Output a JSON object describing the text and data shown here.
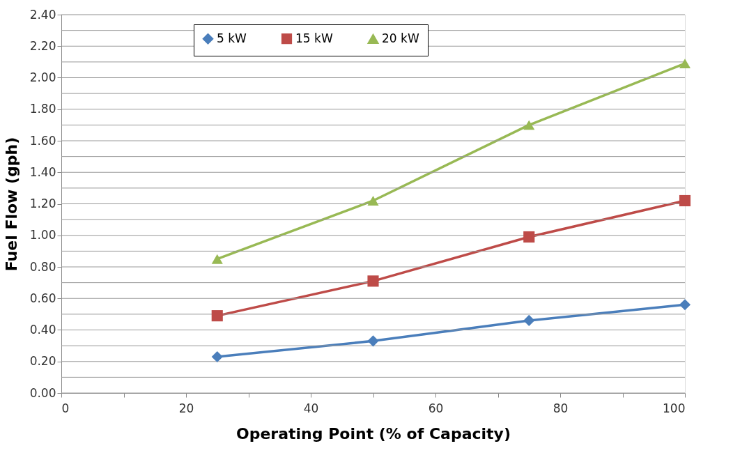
{
  "chart_data": {
    "type": "line",
    "xlabel": "Operating Point (% of Capacity)",
    "ylabel": "Fuel Flow (gph)",
    "xlim": [
      0,
      100
    ],
    "xticks": [
      0,
      {
        "value": 10,
        "label": null
      },
      20,
      {
        "value": 30,
        "label": null
      },
      40,
      {
        "value": 50,
        "label": null
      },
      60,
      {
        "value": 70,
        "label": null
      },
      80,
      {
        "value": 90,
        "label": null
      },
      100
    ],
    "ylim": [
      0,
      2.4
    ],
    "yticks": [
      {
        "value": 0,
        "label": "0.00"
      },
      {
        "value": 0.1,
        "label": null
      },
      {
        "value": 0.2,
        "label": "0.20"
      },
      {
        "value": 0.3,
        "label": null
      },
      {
        "value": 0.4,
        "label": "0.40"
      },
      {
        "value": 0.5,
        "label": null
      },
      {
        "value": 0.6,
        "label": "0.60"
      },
      {
        "value": 0.7,
        "label": null
      },
      {
        "value": 0.8,
        "label": "0.80"
      },
      {
        "value": 0.9,
        "label": null
      },
      {
        "value": 1.0,
        "label": "1.00"
      },
      {
        "value": 1.1,
        "label": null
      },
      {
        "value": 1.2,
        "label": "1.20"
      },
      {
        "value": 1.3,
        "label": null
      },
      {
        "value": 1.4,
        "label": "1.40"
      },
      {
        "value": 1.5,
        "label": null
      },
      {
        "value": 1.6,
        "label": "1.60"
      },
      {
        "value": 1.7,
        "label": null
      },
      {
        "value": 1.8,
        "label": "1.80"
      },
      {
        "value": 1.9,
        "label": null
      },
      {
        "value": 2.0,
        "label": "2.00"
      },
      {
        "value": 2.1,
        "label": null
      },
      {
        "value": 2.2,
        "label": "2.20"
      },
      {
        "value": 2.3,
        "label": null
      },
      {
        "value": 2.4,
        "label": "2.40"
      }
    ],
    "grid": "y",
    "legend": "top",
    "line_style": "solid",
    "x": [
      25,
      50,
      75,
      100
    ],
    "series": [
      {
        "name": "5 kW",
        "color": "#4a7ebb",
        "marker": "diamond",
        "values": [
          0.23,
          0.33,
          0.46,
          0.56
        ]
      },
      {
        "name": "15 kW",
        "color": "#be4b48",
        "marker": "square",
        "values": [
          0.49,
          0.71,
          0.99,
          1.22
        ]
      },
      {
        "name": "20 kW",
        "color": "#98b954",
        "marker": "triangle",
        "values": [
          0.85,
          1.22,
          1.7,
          2.09
        ]
      }
    ]
  }
}
